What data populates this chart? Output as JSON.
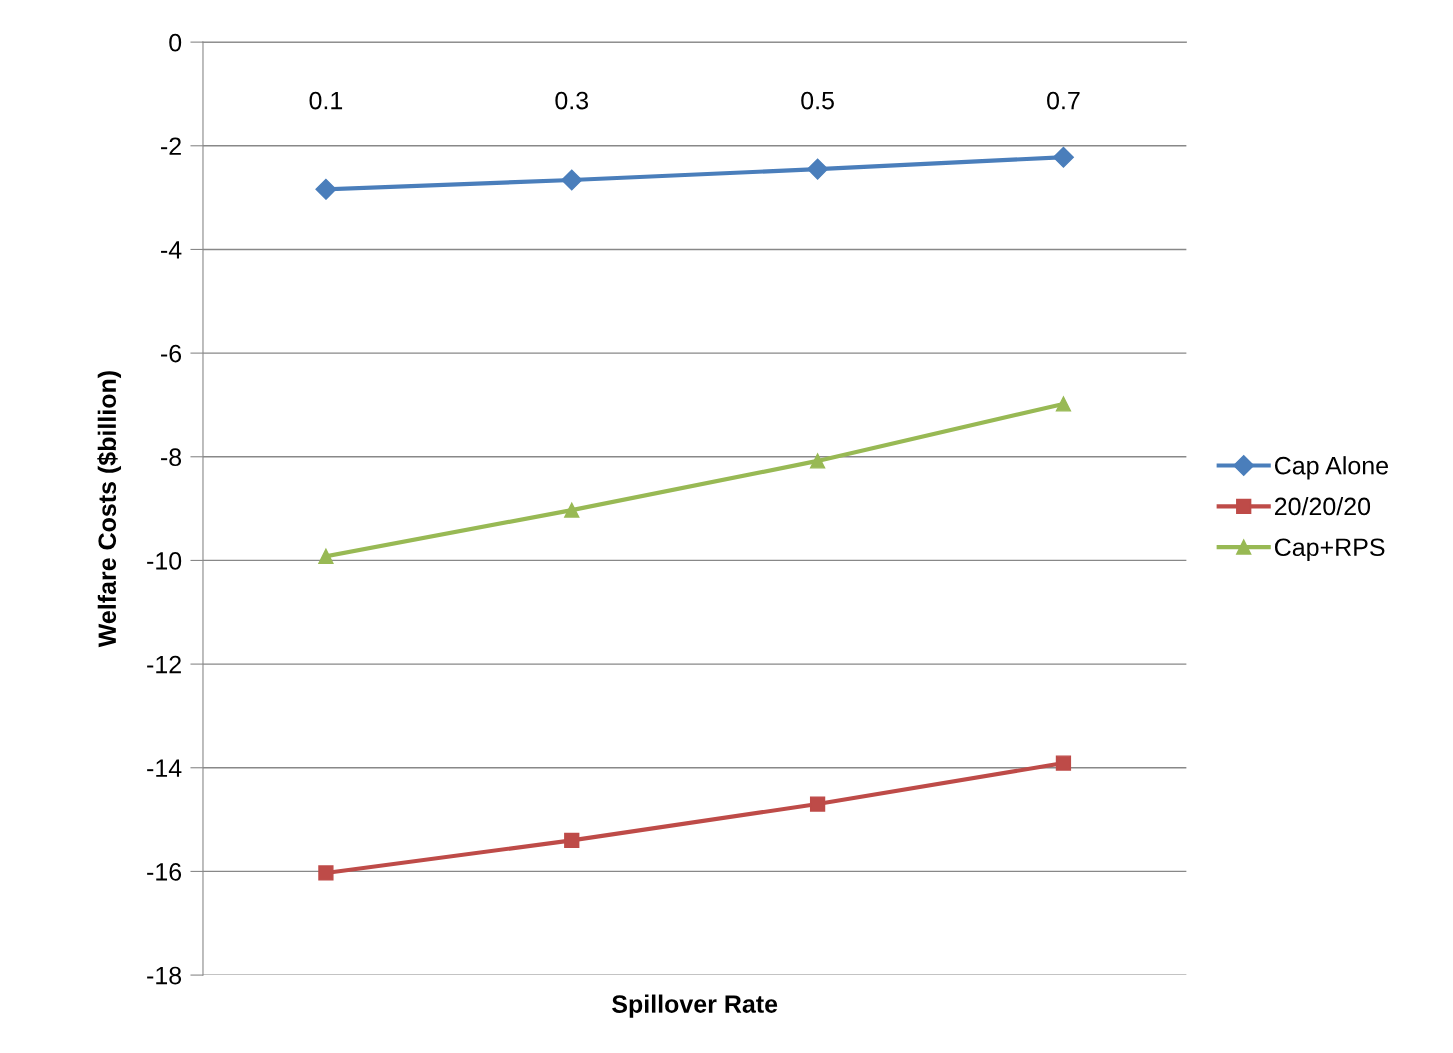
{
  "chart_data": {
    "type": "line",
    "xlabel": "Spillover Rate",
    "ylabel": "Welfare Costs ($billion)",
    "categories": [
      "0.1",
      "0.3",
      "0.5",
      "0.7"
    ],
    "series": [
      {
        "name": "Cap Alone",
        "color": "#4a7ebb",
        "marker": "diamond",
        "values": [
          -2.84,
          -2.66,
          -2.45,
          -2.22
        ]
      },
      {
        "name": "20/20/20",
        "color": "#be4b48",
        "marker": "square",
        "values": [
          -16.03,
          -15.4,
          -14.7,
          -13.91
        ]
      },
      {
        "name": "Cap+RPS",
        "color": "#98b954",
        "marker": "triangle",
        "values": [
          -9.92,
          -9.03,
          -8.08,
          -6.98
        ]
      }
    ],
    "ylim": [
      -18,
      0
    ],
    "yticks": [
      -18,
      -16,
      -14,
      -12,
      -10,
      -8,
      -6,
      -4,
      -2,
      0
    ],
    "grid": "y",
    "legend": "right",
    "line_style": "solid"
  }
}
